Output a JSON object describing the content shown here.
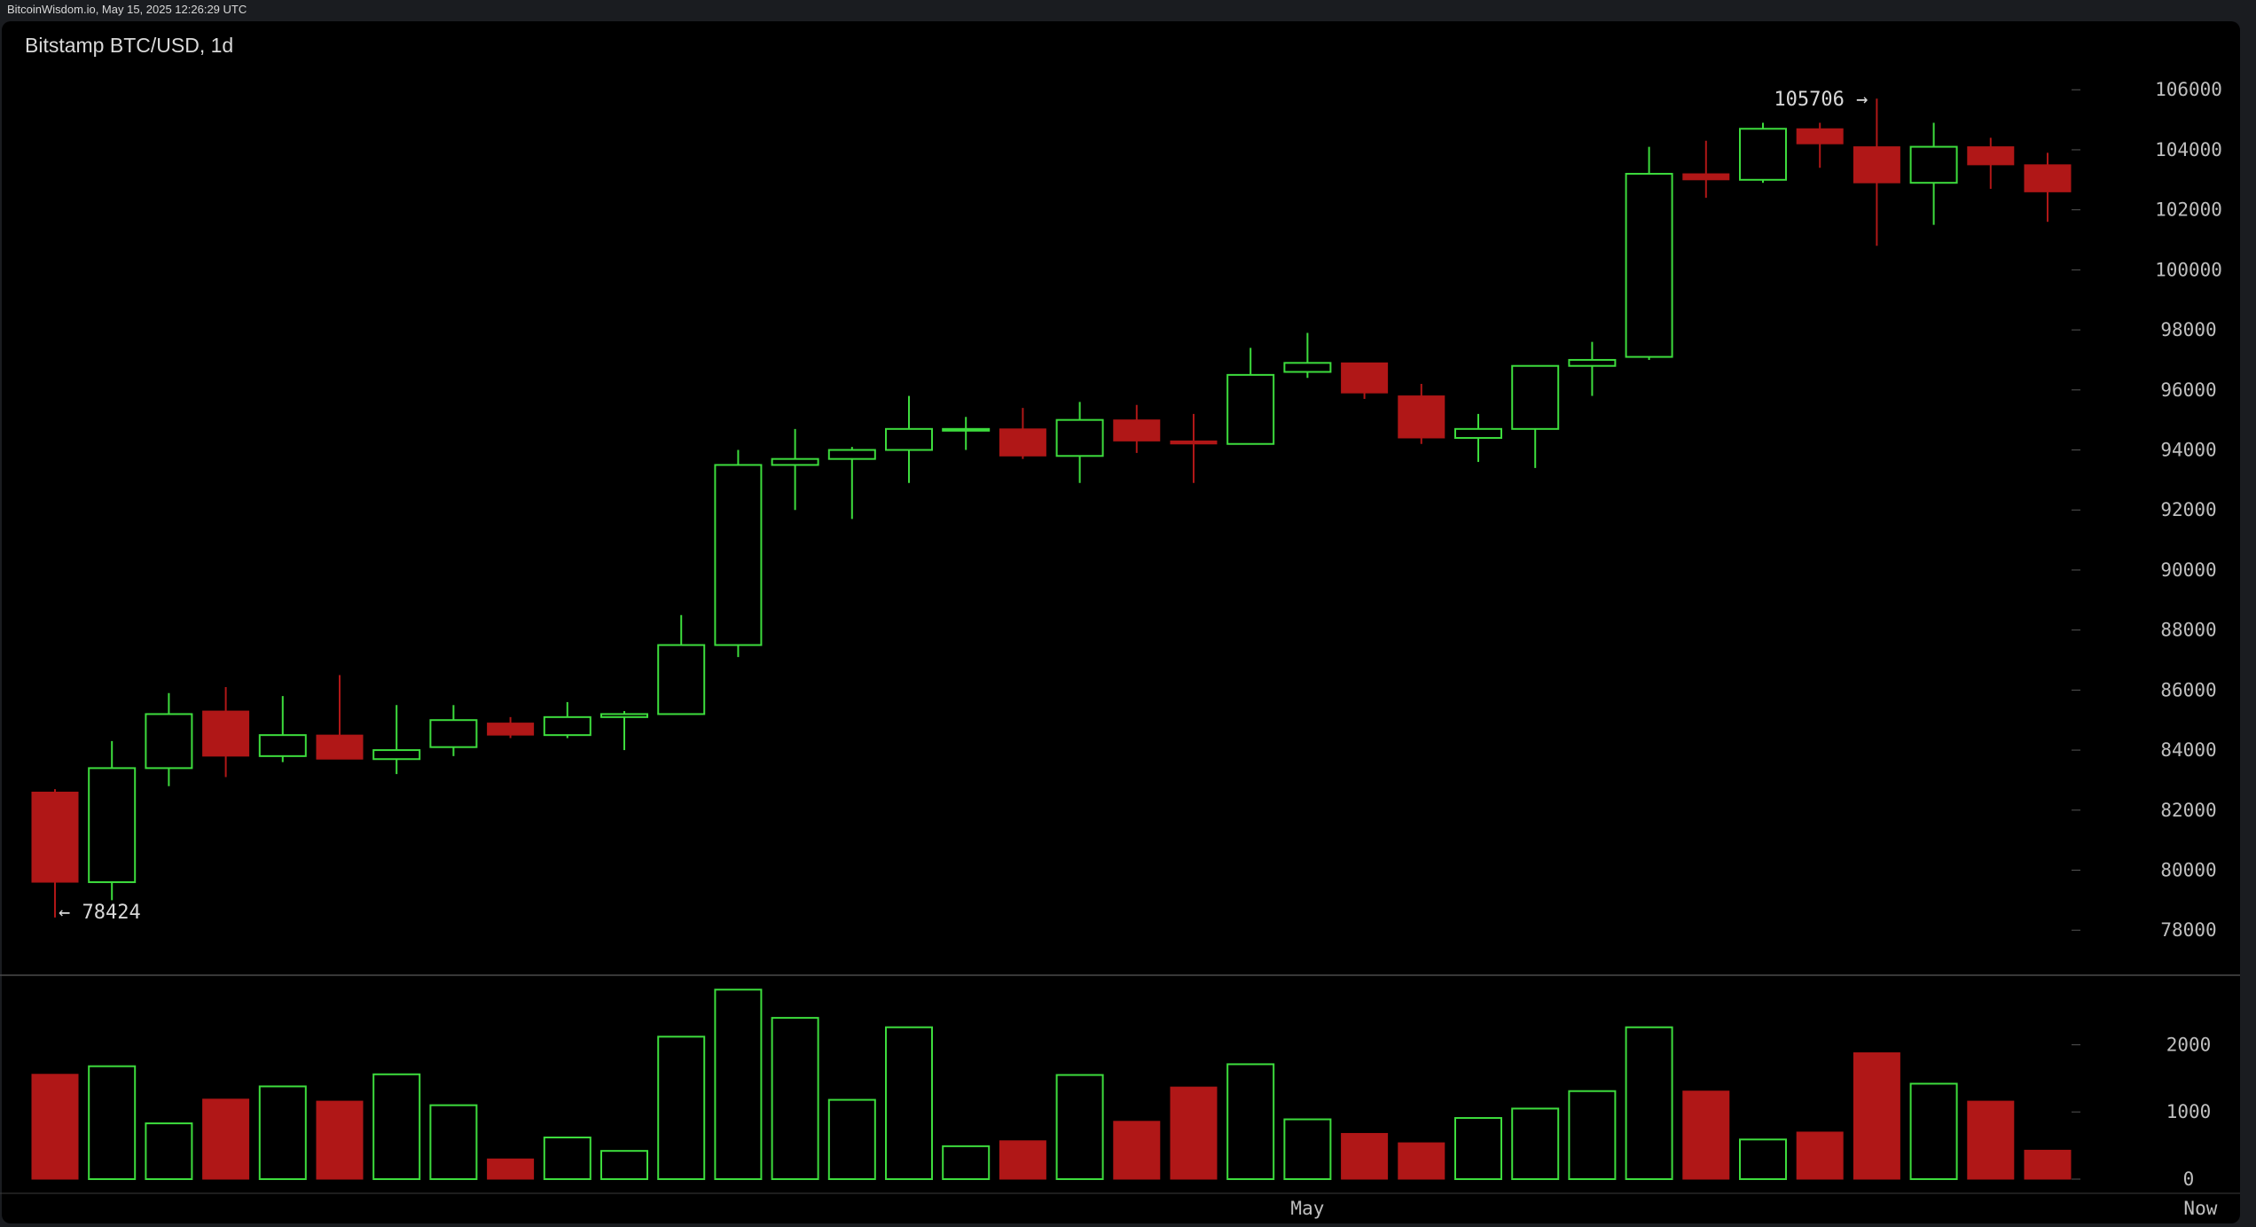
{
  "header": {
    "source_line": "BitcoinWisdom.io, May 15, 2025 12:26:29 UTC"
  },
  "colors": {
    "background": "#000000",
    "frame": "#1a1c20",
    "up": "#3ddc3d",
    "down": "#b01717",
    "text": "#d9d9d9",
    "axis_text": "#bfbfbf",
    "separator": "#4a4a4a"
  },
  "chart_data": {
    "type": "candlestick",
    "title": "Bitstamp BTC/USD, 1d",
    "price_axis": {
      "range": [
        76500,
        107100
      ],
      "ticks": [
        78000,
        80000,
        82000,
        84000,
        86000,
        88000,
        90000,
        92000,
        94000,
        96000,
        98000,
        100000,
        102000,
        104000,
        106000
      ],
      "tick_labels": [
        "78000",
        "80000",
        "82000",
        "84000",
        "86000",
        "88000",
        "90000",
        "92000",
        "94000",
        "96000",
        "98000",
        "100000",
        "102000",
        "104000",
        "106000"
      ]
    },
    "volume_axis": {
      "range": [
        0,
        2850
      ],
      "ticks": [
        0,
        1000,
        2000
      ],
      "tick_labels": [
        "0",
        "1000",
        "2000"
      ]
    },
    "x_axis": {
      "labels": [
        {
          "text": "May",
          "index": 22
        },
        {
          "text": "Now",
          "index": 37
        }
      ]
    },
    "annotations": {
      "low": {
        "text": "← 78424",
        "value": 78424,
        "index": 0
      },
      "high": {
        "text": "105706 →",
        "value": 105706,
        "index": 32
      }
    },
    "candles": [
      {
        "o": 82600,
        "h": 82700,
        "l": 78424,
        "c": 79600,
        "v": 1560
      },
      {
        "o": 79600,
        "h": 84300,
        "l": 79000,
        "c": 83400,
        "v": 1680
      },
      {
        "o": 83400,
        "h": 85900,
        "l": 82800,
        "c": 85200,
        "v": 830
      },
      {
        "o": 85300,
        "h": 86100,
        "l": 83100,
        "c": 83800,
        "v": 1190
      },
      {
        "o": 83800,
        "h": 85800,
        "l": 83600,
        "c": 84500,
        "v": 1380
      },
      {
        "o": 84500,
        "h": 86500,
        "l": 83700,
        "c": 83700,
        "v": 1160
      },
      {
        "o": 83700,
        "h": 85500,
        "l": 83200,
        "c": 84000,
        "v": 1560
      },
      {
        "o": 84100,
        "h": 85500,
        "l": 83800,
        "c": 85000,
        "v": 1100
      },
      {
        "o": 84900,
        "h": 85100,
        "l": 84400,
        "c": 84500,
        "v": 300
      },
      {
        "o": 84500,
        "h": 85600,
        "l": 84400,
        "c": 85100,
        "v": 620
      },
      {
        "o": 85100,
        "h": 85300,
        "l": 84000,
        "c": 85200,
        "v": 420
      },
      {
        "o": 85200,
        "h": 88500,
        "l": 85200,
        "c": 87500,
        "v": 2120
      },
      {
        "o": 87500,
        "h": 94000,
        "l": 87100,
        "c": 93500,
        "v": 2820
      },
      {
        "o": 93500,
        "h": 94700,
        "l": 92000,
        "c": 93700,
        "v": 2400
      },
      {
        "o": 93700,
        "h": 94100,
        "l": 91700,
        "c": 94000,
        "v": 1180
      },
      {
        "o": 94000,
        "h": 95800,
        "l": 92900,
        "c": 94700,
        "v": 2260
      },
      {
        "o": 94700,
        "h": 95100,
        "l": 94000,
        "c": 94700,
        "v": 490
      },
      {
        "o": 94700,
        "h": 95400,
        "l": 93700,
        "c": 93800,
        "v": 570
      },
      {
        "o": 93800,
        "h": 95600,
        "l": 92900,
        "c": 95000,
        "v": 1550
      },
      {
        "o": 95000,
        "h": 95500,
        "l": 93900,
        "c": 94300,
        "v": 860
      },
      {
        "o": 94300,
        "h": 95200,
        "l": 92900,
        "c": 94200,
        "v": 1370
      },
      {
        "o": 94200,
        "h": 97400,
        "l": 94200,
        "c": 96500,
        "v": 1710
      },
      {
        "o": 96600,
        "h": 97900,
        "l": 96400,
        "c": 96900,
        "v": 890
      },
      {
        "o": 96900,
        "h": 96900,
        "l": 95700,
        "c": 95900,
        "v": 680
      },
      {
        "o": 95800,
        "h": 96200,
        "l": 94200,
        "c": 94400,
        "v": 540
      },
      {
        "o": 94400,
        "h": 95200,
        "l": 93600,
        "c": 94700,
        "v": 910
      },
      {
        "o": 94700,
        "h": 96800,
        "l": 93400,
        "c": 96800,
        "v": 1050
      },
      {
        "o": 96800,
        "h": 97600,
        "l": 95800,
        "c": 97000,
        "v": 1310
      },
      {
        "o": 97100,
        "h": 104100,
        "l": 97000,
        "c": 103200,
        "v": 2260
      },
      {
        "o": 103200,
        "h": 104300,
        "l": 102400,
        "c": 103000,
        "v": 1310
      },
      {
        "o": 103000,
        "h": 104900,
        "l": 102900,
        "c": 104700,
        "v": 590
      },
      {
        "o": 104700,
        "h": 104900,
        "l": 103400,
        "c": 104200,
        "v": 700
      },
      {
        "o": 104100,
        "h": 105706,
        "l": 100800,
        "c": 102900,
        "v": 1880
      },
      {
        "o": 102900,
        "h": 104900,
        "l": 101500,
        "c": 104100,
        "v": 1420
      },
      {
        "o": 104100,
        "h": 104400,
        "l": 102700,
        "c": 103500,
        "v": 1160
      },
      {
        "o": 103500,
        "h": 103900,
        "l": 101600,
        "c": 102600,
        "v": 430
      }
    ]
  }
}
